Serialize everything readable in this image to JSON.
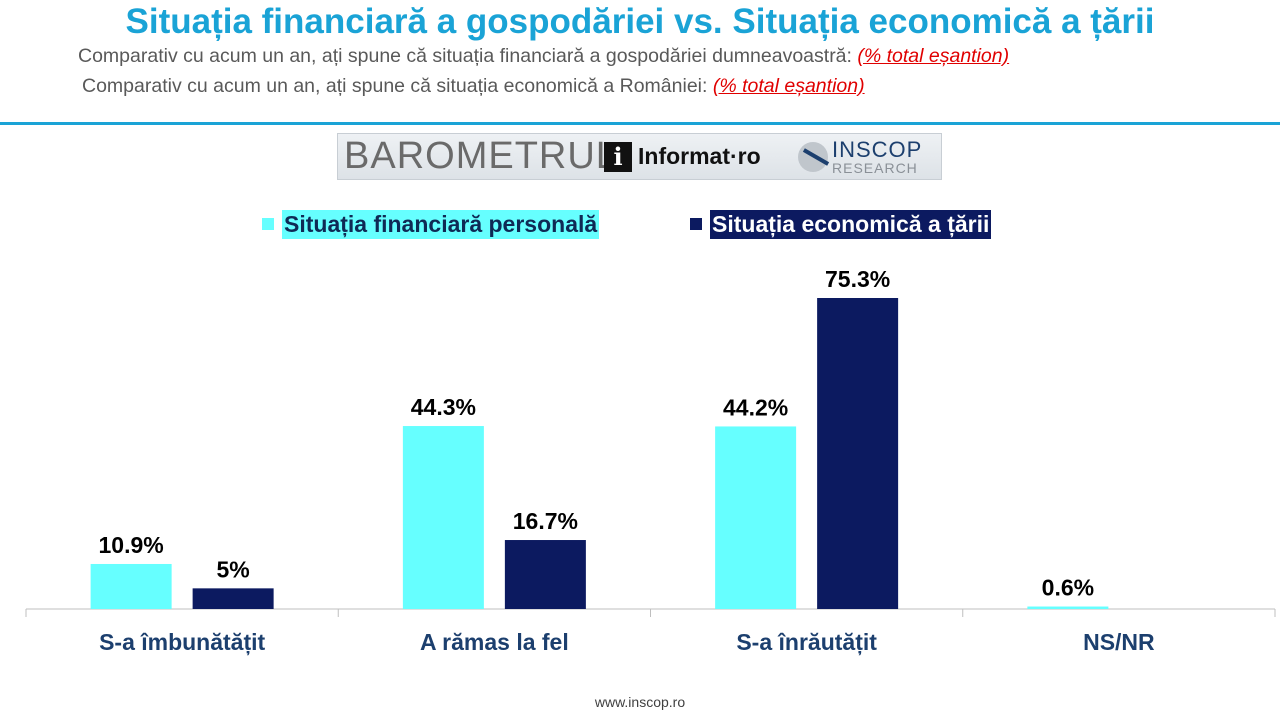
{
  "header": {
    "title": "Situația financiară a gospodăriei vs. Situația economică a țării",
    "subtitle1_text": "Comparativ cu acum un an, ați spune că situația financiară a gospodăriei dumneavoastră:",
    "subtitle1_note": "(% total eșantion)",
    "subtitle2_text": "Comparativ cu acum un an, ați spune că situația economică a României:",
    "subtitle2_note": "(% total eșantion)"
  },
  "logo": {
    "barometru": "BAROMETRUL",
    "informat": "Informat·ro",
    "inscop": "INSCOP",
    "research": "RESEARCH"
  },
  "footer": {
    "url": "www.inscop.ro"
  },
  "colors": {
    "title": "#1aa3d6",
    "series1": "#66ffff",
    "series2": "#0c1a60",
    "category_label": "#1c3f6e"
  },
  "chart_data": {
    "type": "bar",
    "categories": [
      "S-a îmbunătățit",
      "A rămas la fel",
      "S-a înrăutățit",
      "NS/NR"
    ],
    "series": [
      {
        "name": "Situația financiară personală",
        "values": [
          10.9,
          44.3,
          44.2,
          0.6
        ],
        "labels": [
          "10.9%",
          "44.3%",
          "44.2%",
          "0.6%"
        ]
      },
      {
        "name": "Situația economică a țării",
        "values": [
          5,
          16.7,
          75.3,
          null
        ],
        "labels": [
          "5%",
          "16.7%",
          "75.3%",
          ""
        ]
      }
    ],
    "ylim": [
      0,
      75.3
    ],
    "grid": false,
    "legend": "top"
  }
}
